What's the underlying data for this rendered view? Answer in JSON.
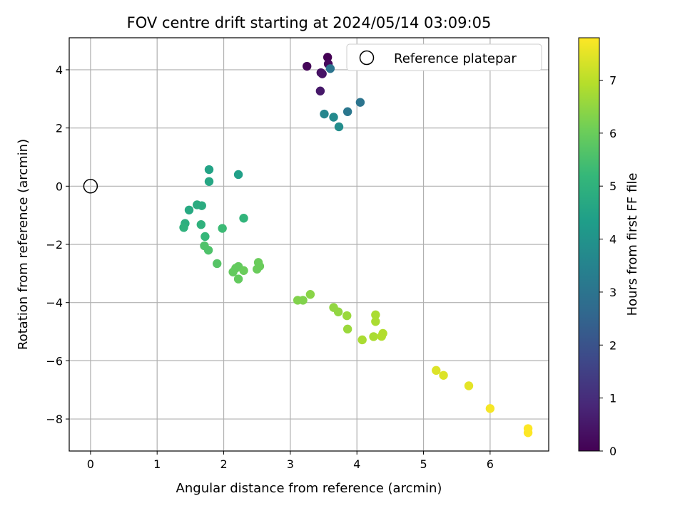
{
  "chart_data": {
    "type": "scatter",
    "title": "FOV centre drift starting at 2024/05/14 03:09:05",
    "xlabel": "Angular distance from reference (arcmin)",
    "ylabel": "Rotation from reference (arcmin)",
    "xlim": [
      -0.32,
      6.88
    ],
    "ylim": [
      -9.1,
      5.1
    ],
    "x_ticks": [
      0,
      1,
      2,
      3,
      4,
      5,
      6
    ],
    "x_tick_labels": [
      "0",
      "1",
      "2",
      "3",
      "4",
      "5",
      "6"
    ],
    "y_ticks": [
      -8,
      -6,
      -4,
      -2,
      0,
      2,
      4
    ],
    "y_tick_labels": [
      "−8",
      "−6",
      "−4",
      "−2",
      "0",
      "2",
      "4"
    ],
    "grid": true,
    "legend": {
      "position": "top-right",
      "label": "Reference platepar"
    },
    "reference_point": {
      "x": 0,
      "y": 0
    },
    "colorbar": {
      "label": "Hours from first FF file",
      "colormap": "viridis",
      "range": [
        0,
        7.8
      ],
      "ticks": [
        0,
        1,
        2,
        3,
        4,
        5,
        6,
        7
      ],
      "tick_labels": [
        "0",
        "1",
        "2",
        "3",
        "4",
        "5",
        "6",
        "7"
      ]
    },
    "colormap_stops": [
      "#440154",
      "#482878",
      "#3e4989",
      "#31688e",
      "#26828e",
      "#1f9e89",
      "#35b779",
      "#6ece58",
      "#b5de2b",
      "#fde725"
    ],
    "points": [
      {
        "x": 3.56,
        "y": 4.43,
        "c": 0.0
      },
      {
        "x": 3.25,
        "y": 4.12,
        "c": 0.1
      },
      {
        "x": 3.57,
        "y": 4.2,
        "c": 0.2
      },
      {
        "x": 3.46,
        "y": 3.9,
        "c": 0.3
      },
      {
        "x": 3.48,
        "y": 3.86,
        "c": 0.4
      },
      {
        "x": 3.45,
        "y": 3.27,
        "c": 0.5
      },
      {
        "x": 3.6,
        "y": 4.04,
        "c": 3.0
      },
      {
        "x": 4.05,
        "y": 2.88,
        "c": 3.0
      },
      {
        "x": 3.86,
        "y": 2.56,
        "c": 3.1
      },
      {
        "x": 3.51,
        "y": 2.48,
        "c": 3.6
      },
      {
        "x": 3.65,
        "y": 2.37,
        "c": 3.7
      },
      {
        "x": 3.73,
        "y": 2.04,
        "c": 3.8
      },
      {
        "x": 2.22,
        "y": 0.4,
        "c": 4.4
      },
      {
        "x": 1.78,
        "y": 0.57,
        "c": 4.5
      },
      {
        "x": 1.78,
        "y": 0.16,
        "c": 4.6
      },
      {
        "x": 1.48,
        "y": -0.82,
        "c": 4.7
      },
      {
        "x": 1.6,
        "y": -0.64,
        "c": 4.8
      },
      {
        "x": 1.67,
        "y": -0.67,
        "c": 4.8
      },
      {
        "x": 1.42,
        "y": -1.28,
        "c": 4.9
      },
      {
        "x": 1.4,
        "y": -1.42,
        "c": 5.0
      },
      {
        "x": 1.66,
        "y": -1.32,
        "c": 5.0
      },
      {
        "x": 2.3,
        "y": -1.1,
        "c": 5.1
      },
      {
        "x": 1.72,
        "y": -1.73,
        "c": 5.2
      },
      {
        "x": 1.98,
        "y": -1.45,
        "c": 5.3
      },
      {
        "x": 1.71,
        "y": -2.05,
        "c": 5.6
      },
      {
        "x": 1.77,
        "y": -2.2,
        "c": 5.6
      },
      {
        "x": 1.9,
        "y": -2.66,
        "c": 5.7
      },
      {
        "x": 2.14,
        "y": -2.95,
        "c": 5.9
      },
      {
        "x": 2.18,
        "y": -2.82,
        "c": 5.9
      },
      {
        "x": 2.22,
        "y": -2.76,
        "c": 5.9
      },
      {
        "x": 2.3,
        "y": -2.9,
        "c": 6.0
      },
      {
        "x": 2.22,
        "y": -3.19,
        "c": 5.9
      },
      {
        "x": 2.5,
        "y": -2.85,
        "c": 6.0
      },
      {
        "x": 2.52,
        "y": -2.62,
        "c": 6.0
      },
      {
        "x": 2.54,
        "y": -2.75,
        "c": 6.0
      },
      {
        "x": 3.11,
        "y": -3.92,
        "c": 6.3
      },
      {
        "x": 3.19,
        "y": -3.92,
        "c": 6.3
      },
      {
        "x": 3.3,
        "y": -3.72,
        "c": 6.4
      },
      {
        "x": 3.65,
        "y": -4.17,
        "c": 6.5
      },
      {
        "x": 3.72,
        "y": -4.32,
        "c": 6.5
      },
      {
        "x": 3.85,
        "y": -4.45,
        "c": 6.6
      },
      {
        "x": 3.86,
        "y": -4.91,
        "c": 6.6
      },
      {
        "x": 4.28,
        "y": -4.42,
        "c": 6.8
      },
      {
        "x": 4.28,
        "y": -4.65,
        "c": 6.8
      },
      {
        "x": 4.25,
        "y": -5.17,
        "c": 6.8
      },
      {
        "x": 4.08,
        "y": -5.28,
        "c": 6.8
      },
      {
        "x": 4.37,
        "y": -5.16,
        "c": 6.9
      },
      {
        "x": 4.39,
        "y": -5.06,
        "c": 6.9
      },
      {
        "x": 5.19,
        "y": -6.33,
        "c": 7.4
      },
      {
        "x": 5.3,
        "y": -6.5,
        "c": 7.4
      },
      {
        "x": 5.68,
        "y": -6.86,
        "c": 7.5
      },
      {
        "x": 6.0,
        "y": -7.64,
        "c": 7.7
      },
      {
        "x": 6.57,
        "y": -8.33,
        "c": 7.8
      },
      {
        "x": 6.57,
        "y": -8.47,
        "c": 7.8
      }
    ]
  }
}
